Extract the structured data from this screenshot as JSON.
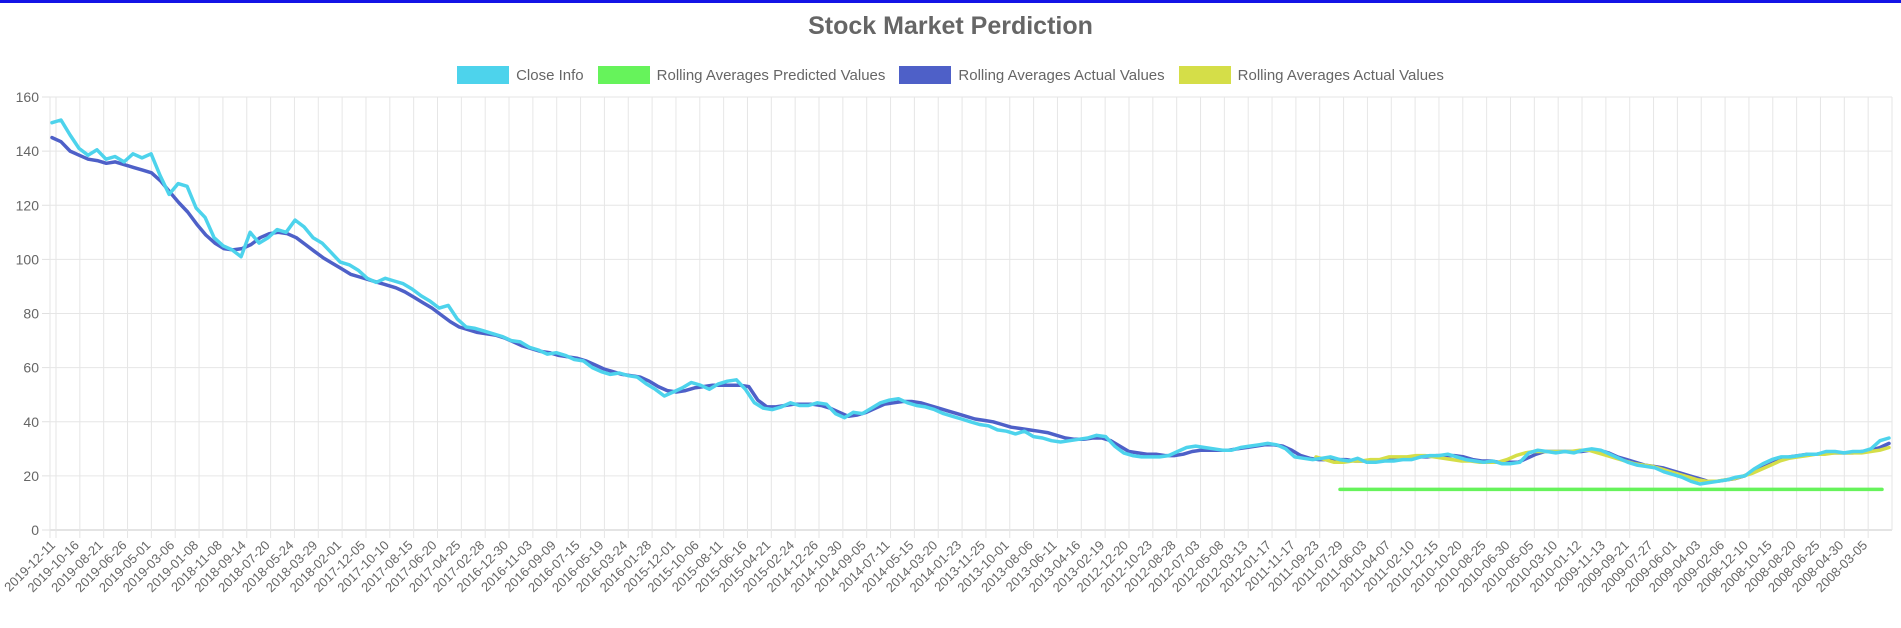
{
  "chart_data": {
    "type": "line",
    "title": "Stock Market Perdiction",
    "xlabel": "",
    "ylabel": "",
    "ylim": [
      0,
      160
    ],
    "y_ticks": [
      "0",
      "20",
      "40",
      "60",
      "80",
      "100",
      "120",
      "140",
      "160"
    ],
    "grid": true,
    "legend_position": "top-center",
    "x_tick_labels": [
      "2019-12-11",
      "2019-10-16",
      "2019-08-21",
      "2019-06-26",
      "2019-05-01",
      "2019-03-06",
      "2019-01-08",
      "2018-11-08",
      "2018-09-14",
      "2018-07-20",
      "2018-05-24",
      "2018-03-29",
      "2018-02-01",
      "2017-12-05",
      "2017-10-10",
      "2017-08-15",
      "2017-06-20",
      "2017-04-25",
      "2017-02-28",
      "2016-12-30",
      "2016-11-03",
      "2016-09-09",
      "2016-07-15",
      "2016-05-19",
      "2016-03-24",
      "2016-01-28",
      "2015-12-01",
      "2015-10-06",
      "2015-08-11",
      "2015-06-16",
      "2015-04-21",
      "2015-02-24",
      "2014-12-26",
      "2014-10-30",
      "2014-09-05",
      "2014-07-11",
      "2014-05-15",
      "2014-03-20",
      "2014-01-23",
      "2013-11-25",
      "2013-10-01",
      "2013-08-06",
      "2013-06-11",
      "2013-04-16",
      "2013-02-19",
      "2012-12-20",
      "2012-10-23",
      "2012-08-28",
      "2012-07-03",
      "2012-05-08",
      "2012-03-13",
      "2012-01-17",
      "2011-11-17",
      "2011-09-23",
      "2011-07-29",
      "2011-06-03",
      "2011-04-07",
      "2011-02-10",
      "2010-12-15",
      "2010-10-20",
      "2010-08-25",
      "2010-06-30",
      "2010-05-05",
      "2010-03-10",
      "2010-01-12",
      "2009-11-13",
      "2009-09-21",
      "2009-07-27",
      "2009-06-01",
      "2009-04-03",
      "2009-02-06",
      "2008-12-10",
      "2008-10-15",
      "2008-08-20",
      "2008-06-25",
      "2008-04-30",
      "2008-03-05"
    ],
    "series": [
      {
        "name": "Close Info",
        "color": "#4dd3ec",
        "values": [
          150.5,
          151.5,
          146,
          141,
          138.5,
          140.5,
          137,
          138,
          136,
          139,
          137.5,
          139,
          131,
          124,
          128,
          127,
          119,
          115.5,
          108,
          105,
          103.5,
          101,
          110,
          106,
          108,
          111,
          110,
          114.5,
          112,
          108,
          106,
          102.5,
          99,
          98,
          96,
          93,
          91.5,
          93,
          92,
          91,
          89,
          86.5,
          84.5,
          82,
          83,
          78,
          75,
          74.5,
          73.5,
          72.5,
          71.5,
          70,
          69.5,
          67.5,
          66.5,
          65,
          65.5,
          64.5,
          63,
          62.5,
          60,
          58.5,
          57.5,
          58,
          57,
          56.5,
          54,
          52,
          49.5,
          51,
          52.5,
          54.5,
          53.5,
          52,
          54,
          55,
          55.5,
          52,
          47,
          45,
          44.5,
          45.5,
          47,
          46,
          46,
          47,
          46.5,
          43,
          41.5,
          43.5,
          43,
          45,
          47,
          48,
          48.5,
          47,
          46,
          45.5,
          44.5,
          43,
          42,
          41,
          40,
          39,
          38.5,
          37,
          36.5,
          35.5,
          36.5,
          34.5,
          34,
          33,
          32.5,
          33,
          33.5,
          34,
          35,
          34.5,
          31,
          28.5,
          27.5,
          27,
          27,
          27,
          27.5,
          29,
          30.5,
          31,
          30.5,
          30,
          29.5,
          29.5,
          30.5,
          31,
          31.5,
          32,
          31.5,
          30,
          27,
          26.5,
          26,
          26.5,
          27,
          26,
          25.5,
          26.5,
          25,
          25,
          25.5,
          25.5,
          26,
          26,
          27,
          27.5,
          27.5,
          28,
          27,
          26,
          25.5,
          25,
          25.5,
          24.5,
          24.5,
          25,
          28.5,
          29.5,
          29,
          28.5,
          29,
          28.5,
          29.5,
          30,
          29.5,
          28,
          26.5,
          25,
          24,
          23.5,
          23,
          21.5,
          20.5,
          19.5,
          18,
          17,
          17.5,
          18,
          18.5,
          19.5,
          20,
          22.5,
          24.5,
          26,
          27,
          27,
          27.5,
          28,
          28,
          29,
          29,
          28.5,
          29,
          29,
          30,
          33,
          34
        ]
      },
      {
        "name": "Rolling Averages Predicted Values",
        "color": "#66f35b",
        "values": [
          15,
          15,
          15,
          15,
          15,
          15,
          15,
          15,
          15,
          15,
          15,
          15,
          15,
          15,
          15,
          15,
          15,
          15,
          15,
          15,
          15,
          15,
          15,
          15,
          15,
          15,
          15,
          15,
          15,
          15,
          15,
          15,
          15,
          15,
          15,
          15,
          15,
          15,
          15,
          15,
          15,
          15,
          15,
          15,
          15,
          15,
          15,
          15,
          15,
          15,
          15,
          15,
          15,
          15,
          15,
          15,
          15,
          15,
          15,
          15,
          15,
          15,
          15,
          15,
          15,
          15,
          15,
          15,
          15,
          15,
          15,
          15,
          15,
          15,
          15,
          15,
          15,
          15,
          15,
          15
        ]
      },
      {
        "name": "Rolling Averages Actual Values",
        "color": "#4e60c8",
        "values": [
          145,
          143.5,
          140,
          138.5,
          137,
          136.5,
          135.5,
          136,
          135,
          134,
          133,
          132,
          129,
          125,
          121,
          117.5,
          113,
          109,
          106,
          104,
          103.5,
          104,
          105.5,
          108,
          109.5,
          110,
          109.5,
          108,
          105.5,
          103,
          100.5,
          98.5,
          96.5,
          94.5,
          93.5,
          92.5,
          91.5,
          90.5,
          89.5,
          88,
          86,
          84,
          82,
          79.5,
          77,
          75,
          74,
          73,
          72.5,
          72,
          71,
          69.5,
          68,
          67,
          66,
          65.5,
          64.5,
          64,
          63.5,
          62.5,
          61,
          59.5,
          58.5,
          57.5,
          57,
          56.5,
          55,
          53,
          51.5,
          51,
          51.5,
          52.5,
          53,
          53.5,
          53.5,
          53.5,
          53.5,
          53,
          48,
          45.5,
          45.5,
          46,
          46.5,
          46.5,
          46.5,
          46,
          45,
          43.5,
          42,
          42.5,
          43.5,
          45,
          46.5,
          47,
          47.5,
          47.5,
          47,
          46,
          45,
          44,
          43,
          42,
          41,
          40.5,
          40,
          39,
          38,
          37.5,
          37,
          36.5,
          36,
          35,
          34,
          33.5,
          33.5,
          34,
          34,
          33,
          31,
          29,
          28.5,
          28,
          28,
          27.5,
          27.5,
          28,
          29,
          29.5,
          29.5,
          29.5,
          29.5,
          30,
          30.5,
          31,
          31.5,
          31.5,
          31,
          29.5,
          27.5,
          26.5,
          26,
          26,
          26,
          26,
          25.5,
          25.5,
          25.5,
          26,
          26,
          26,
          26.5,
          27,
          27,
          27.5,
          27.5,
          27.5,
          27,
          26,
          25.5,
          25.5,
          25,
          25,
          25,
          26.5,
          28,
          29,
          29,
          29,
          29,
          29,
          29.5,
          29.5,
          28.5,
          27,
          26,
          25,
          24,
          23.5,
          23,
          22,
          21,
          20,
          19,
          18,
          18,
          18.5,
          19,
          20,
          21.5,
          23,
          24.5,
          26,
          27,
          27.5,
          28,
          28,
          28.5,
          28.5,
          28.5,
          28.5,
          29,
          29.5,
          30.5,
          32
        ]
      },
      {
        "name": "Rolling Averages Actual Values",
        "color": "#d5de48",
        "values": [
          27,
          26,
          25,
          25,
          25.5,
          25.5,
          26,
          26,
          27,
          27,
          27,
          27.5,
          27.5,
          27,
          26.5,
          26,
          25.5,
          25.5,
          25,
          25,
          25,
          26,
          27.5,
          28.5,
          29,
          29,
          29,
          29,
          29,
          29.5,
          29.5,
          28.5,
          27.5,
          26.5,
          25.5,
          24.5,
          24,
          23.5,
          22.5,
          21.5,
          20.5,
          19.5,
          18.5,
          18,
          18,
          18.5,
          19,
          20,
          21,
          22.5,
          24,
          25.5,
          26.5,
          27,
          27.5,
          28,
          28,
          28.5,
          28.5,
          28.5,
          28.5,
          29,
          29.5,
          30.5
        ]
      }
    ]
  }
}
